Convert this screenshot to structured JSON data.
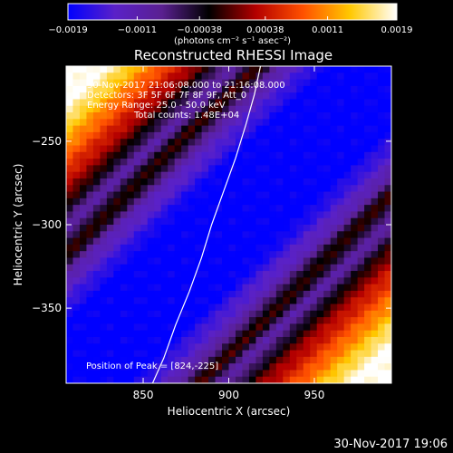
{
  "chart_data": {
    "type": "heatmap",
    "title": "Reconstructed RHESSI Image",
    "xlabel": "Heliocentric X (arcsec)",
    "ylabel": "Heliocentric Y (arcsec)",
    "xlim": [
      805,
      995
    ],
    "ylim": [
      -395,
      -205
    ],
    "x_ticks": [
      850,
      900,
      950
    ],
    "x_tick_labels": [
      "850",
      "900",
      "950"
    ],
    "y_ticks": [
      -250,
      -300,
      -350
    ],
    "y_tick_labels": [
      "−250",
      "−300",
      "−350"
    ],
    "colorbar": {
      "range": [
        -0.0019,
        0.0019
      ],
      "tick_values": [
        -0.0019,
        -0.0011,
        -0.00038,
        0.00038,
        0.0011,
        0.0019
      ],
      "tick_labels": [
        "−0.0019",
        "−0.0011",
        "−0.00038",
        "0.00038",
        "0.0011",
        "0.0019"
      ],
      "units": "(photons cm⁻² s⁻¹ asec⁻²)",
      "colormap": [
        "#0000ff",
        "#5a21c8",
        "#5a2090",
        "#000000",
        "#b40000",
        "#ff5000",
        "#ffc800",
        "#ffffff"
      ]
    },
    "info_lines": [
      "30-Nov-2017 21:06:08.000 to 21:16:08.000",
      "Detectors: 3F 5F 6F 7F 8F 9F, Att_0",
      "Energy Range: 25.0 - 50.0 keV",
      "Total counts: 1.48E+04"
    ],
    "peak_text": "Position of Peak = [824,-225]",
    "limb_curve": [
      [
        855.5,
        -395
      ],
      [
        862,
        -380
      ],
      [
        869,
        -360
      ],
      [
        877,
        -340
      ],
      [
        884,
        -320
      ],
      [
        890,
        -300
      ],
      [
        897,
        -280
      ],
      [
        904,
        -260
      ],
      [
        910,
        -240
      ],
      [
        915,
        -222
      ],
      [
        918.5,
        -205
      ]
    ],
    "field_bands": [
      {
        "offset": -90,
        "value": -0.0011,
        "width": 12
      },
      {
        "offset": -55,
        "value": 0.0,
        "width": 12
      },
      {
        "offset": 0,
        "value": -0.0019,
        "width": 40
      },
      {
        "offset": 55,
        "value": 0.0,
        "width": 12
      },
      {
        "offset": 90,
        "value": -0.0011,
        "width": 12
      }
    ],
    "field_edge_value": 0.0019,
    "band_angle_deg": 45
  },
  "footer": {
    "timestamp": "30-Nov-2017 19:06"
  }
}
